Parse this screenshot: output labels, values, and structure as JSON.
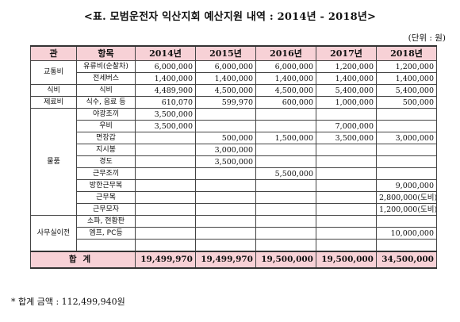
{
  "title": "<표. 모범운전자 익산지회 예산지원 내역 : 2014년 - 2018년>",
  "unit": "(단위 : 원)",
  "headers": [
    "관",
    "항목",
    "2014년",
    "2015년",
    "2016년",
    "2017년",
    "2018년"
  ],
  "categories": {
    "traffic": "교통비",
    "food": "식비",
    "misc": "제료비",
    "supplies": "물품",
    "office": "사무실이전"
  },
  "rows": [
    {
      "item": "유류비(순찰차)",
      "v": [
        "6,000,000",
        "6,000,000",
        "6,000,000",
        "1,200,000",
        "1,200,000"
      ]
    },
    {
      "item": "전세버스",
      "v": [
        "1,400,000",
        "1,400,000",
        "1,400,000",
        "1,400,000",
        "1,400,000"
      ]
    },
    {
      "item": "식비",
      "v": [
        "4,489,900",
        "4,500,000",
        "4,500,000",
        "5,400,000",
        "5,400,000"
      ]
    },
    {
      "item": "식수, 음료 등",
      "v": [
        "610,070",
        "599,970",
        "600,000",
        "1,000,000",
        "500,000"
      ]
    },
    {
      "item": "야광조끼",
      "v": [
        "3,500,000",
        "",
        "",
        "",
        ""
      ]
    },
    {
      "item": "우비",
      "v": [
        "3,500,000",
        "",
        "",
        "7,000,000",
        ""
      ]
    },
    {
      "item": "면장갑",
      "v": [
        "",
        "500,000",
        "1,500,000",
        "3,500,000",
        "3,000,000"
      ]
    },
    {
      "item": "지시봉",
      "v": [
        "",
        "3,000,000",
        "",
        "",
        ""
      ]
    },
    {
      "item": "경도",
      "v": [
        "",
        "3,500,000",
        "",
        "",
        ""
      ]
    },
    {
      "item": "근무조끼",
      "v": [
        "",
        "",
        "5,500,000",
        "",
        ""
      ]
    },
    {
      "item": "방한근무복",
      "v": [
        "",
        "",
        "",
        "",
        "9,000,000"
      ]
    },
    {
      "item": "근무복",
      "v": [
        "",
        "",
        "",
        "",
        "2,800,000(도비)"
      ]
    },
    {
      "item": "근무모자",
      "v": [
        "",
        "",
        "",
        "",
        "1,200,000(도비)"
      ]
    },
    {
      "item": "소파, 현황판",
      "v": [
        "",
        "",
        "",
        "",
        ""
      ]
    },
    {
      "item": "엠프, PC등",
      "v": [
        "",
        "",
        "",
        "",
        "10,000,000"
      ]
    },
    {
      "item": "",
      "v": [
        "",
        "",
        "",
        "",
        ""
      ]
    }
  ],
  "total": {
    "label": "합계",
    "v": [
      "19,499,970",
      "19,499,970",
      "19,500,000",
      "19,500,000",
      "34,500,000"
    ]
  },
  "footnote": "* 합계 금액 : 112,499,940원",
  "colors": {
    "header_bg": "#f7d1d6"
  }
}
